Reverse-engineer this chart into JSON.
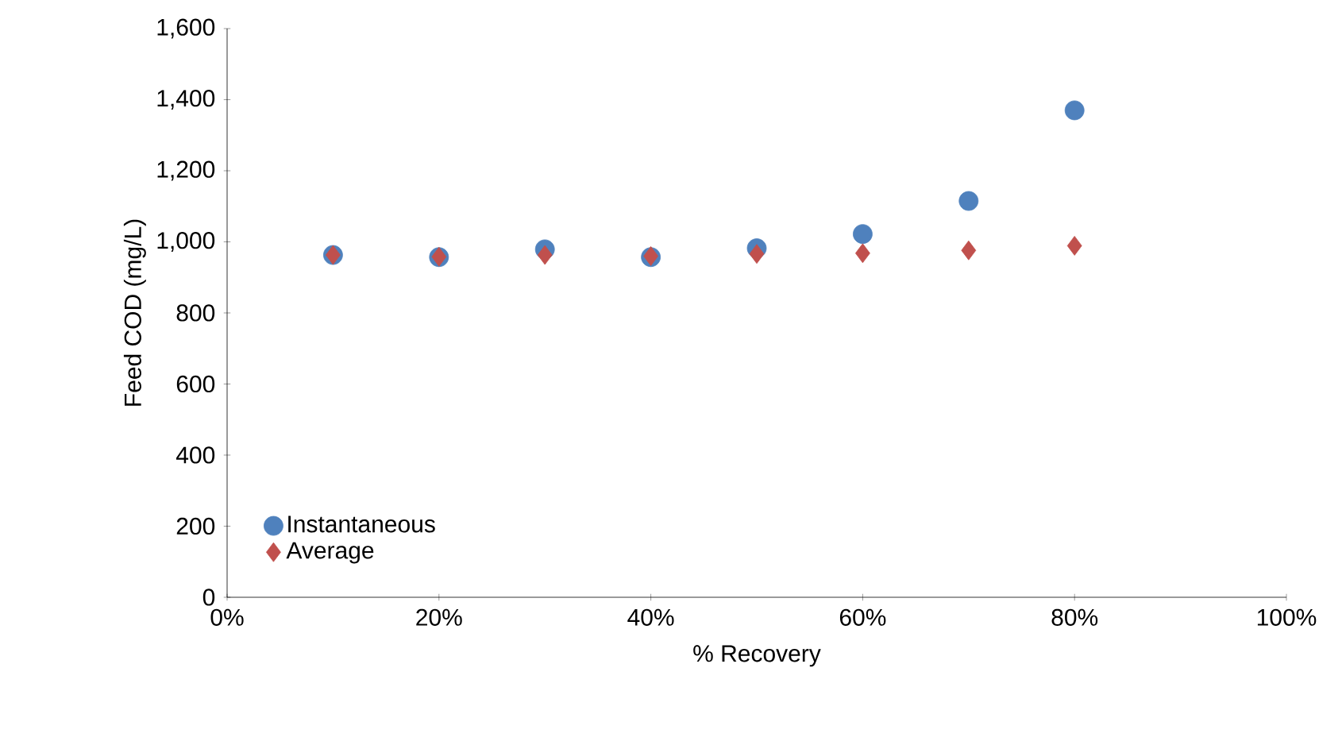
{
  "chart_data": {
    "type": "scatter",
    "xlabel": "% Recovery",
    "ylabel": "Feed COD (mg/L)",
    "x": [
      10,
      20,
      30,
      40,
      50,
      60,
      70,
      80
    ],
    "series": [
      {
        "name": "Instantaneous",
        "color": "#4f81bd",
        "marker": "circle",
        "values": [
          963,
          957,
          979,
          957,
          982,
          1022,
          1115,
          1370
        ]
      },
      {
        "name": "Average",
        "color": "#c0504d",
        "marker": "diamond",
        "values": [
          963,
          958,
          963,
          960,
          966,
          968,
          976,
          989
        ]
      }
    ],
    "xlim": [
      0,
      100
    ],
    "xticks": [
      {
        "value": 0,
        "label": "0%"
      },
      {
        "value": 20,
        "label": "20%"
      },
      {
        "value": 40,
        "label": "40%"
      },
      {
        "value": 60,
        "label": "60%"
      },
      {
        "value": 80,
        "label": "80%"
      },
      {
        "value": 100,
        "label": "100%"
      }
    ],
    "ylim": [
      0,
      1600
    ],
    "yticks": [
      {
        "value": 0,
        "label": "0"
      },
      {
        "value": 200,
        "label": "200"
      },
      {
        "value": 400,
        "label": "400"
      },
      {
        "value": 600,
        "label": "600"
      },
      {
        "value": 800,
        "label": "800"
      },
      {
        "value": 1000,
        "label": "1,000"
      },
      {
        "value": 1200,
        "label": "1,200"
      },
      {
        "value": 1400,
        "label": "1,400"
      },
      {
        "value": 1600,
        "label": "1,600"
      }
    ],
    "grid": false,
    "legend": "bottom left"
  }
}
